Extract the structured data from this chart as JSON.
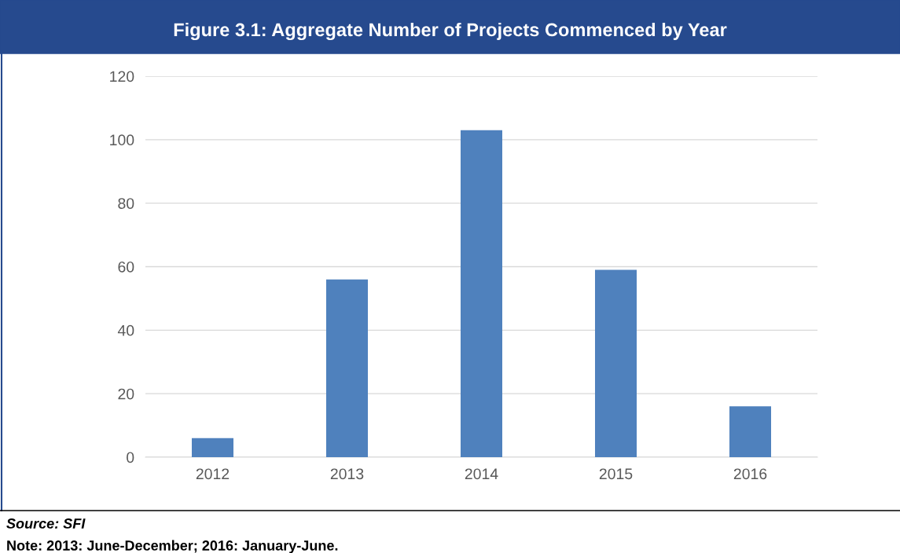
{
  "chart_data": {
    "type": "bar",
    "title": "Figure 3.1: Aggregate Number of Projects Commenced by Year",
    "categories": [
      "2012",
      "2013",
      "2014",
      "2015",
      "2016"
    ],
    "values": [
      6,
      56,
      103,
      59,
      16
    ],
    "color": "#4f81bd",
    "ylim": [
      0,
      120
    ],
    "yticks": [
      0,
      20,
      40,
      60,
      80,
      100,
      120
    ],
    "grid": "y",
    "legend": false,
    "annotations": [
      "Source: SFI",
      "Note: 2013: June-December; 2016: January-June."
    ]
  }
}
